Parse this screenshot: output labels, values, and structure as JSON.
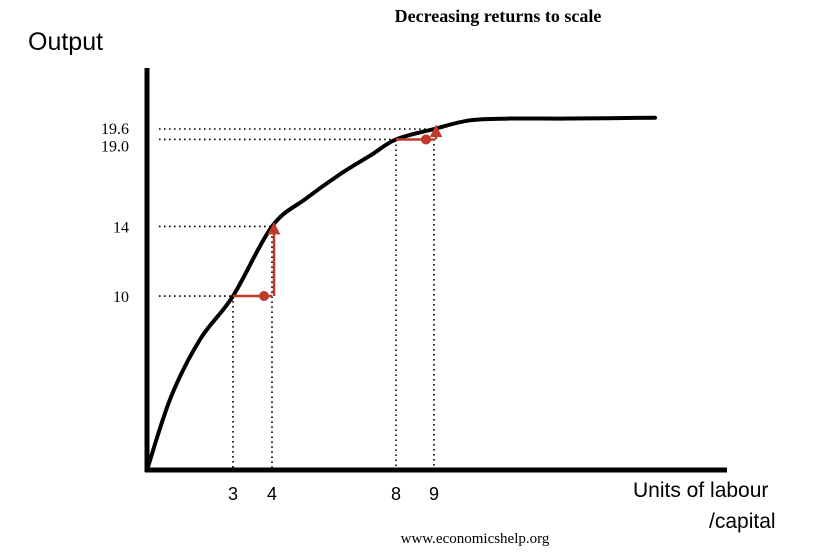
{
  "chart_data": {
    "type": "line",
    "title": "Decreasing returns to scale",
    "ylabel": "Output",
    "xlabel_line1": "Units of labour",
    "xlabel_line2": "/capital",
    "source": "www.economicshelp.org",
    "x_ticks": [
      "3",
      "4",
      "8",
      "9"
    ],
    "y_ticks": [
      "10",
      "14",
      "19.0",
      "19.6"
    ],
    "series": [
      {
        "x": [
          0,
          1,
          2,
          3,
          4,
          5,
          6,
          7,
          8,
          9,
          10,
          11,
          12,
          13
        ],
        "y": [
          0,
          4.2,
          7.5,
          10,
          14,
          15.6,
          17,
          18.1,
          19.0,
          19.6,
          20.1,
          20.2,
          20.2,
          20.25
        ]
      }
    ],
    "highlighted_steps": [
      {
        "x_from": 3,
        "x_to": 4,
        "y_from": 10,
        "y_to": 14
      },
      {
        "x_from": 8,
        "x_to": 9,
        "y_from": 19.0,
        "y_to": 19.6
      }
    ],
    "colors": {
      "curve": "#000000",
      "axis": "#000000",
      "arrow": "#c0392b",
      "guide": "#000000"
    }
  }
}
